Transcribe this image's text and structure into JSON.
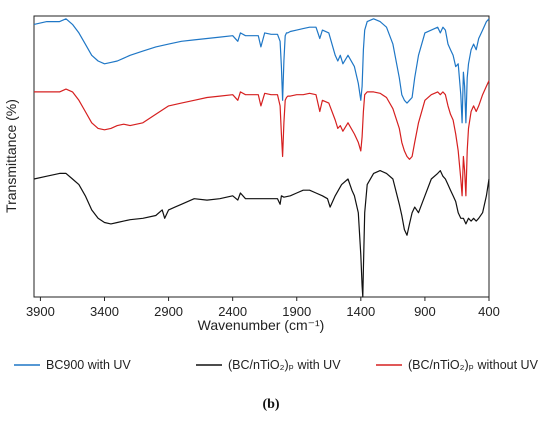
{
  "chart_data": {
    "type": "line",
    "title": "",
    "xlabel": "Wavenumber (cm⁻¹)",
    "ylabel": "Transmittance (%)",
    "xlim": [
      3950,
      400
    ],
    "x_reversed": true,
    "y_ticks_shown": false,
    "grid": false,
    "xticks": [
      3900,
      3400,
      2900,
      2400,
      1900,
      1400,
      900,
      400
    ],
    "legend_position": "bottom",
    "legend": [
      {
        "label": "BC900 with UV",
        "color": "#1f77c6"
      },
      {
        "label": "(BC/nTiO₂)ₚ with UV",
        "color": "#111111"
      },
      {
        "label": "(BC/nTiO₂)ₚ without UV",
        "color": "#d62020"
      }
    ],
    "panel_label": "(b)",
    "series": [
      {
        "color": "#1f77c6",
        "x": [
          3950,
          3850,
          3750,
          3700,
          3650,
          3600,
          3550,
          3500,
          3450,
          3400,
          3350,
          3300,
          3250,
          3200,
          3100,
          3000,
          2900,
          2800,
          2700,
          2600,
          2500,
          2400,
          2360,
          2340,
          2300,
          2200,
          2180,
          2150,
          2100,
          2050,
          2030,
          2020,
          2010,
          2000,
          1990,
          1980,
          1970,
          1950,
          1900,
          1850,
          1800,
          1750,
          1720,
          1700,
          1650,
          1600,
          1580,
          1560,
          1540,
          1500,
          1450,
          1420,
          1400,
          1390,
          1380,
          1370,
          1350,
          1300,
          1250,
          1200,
          1150,
          1100,
          1080,
          1060,
          1040,
          1020,
          1000,
          980,
          950,
          900,
          850,
          800,
          780,
          760,
          740,
          720,
          700,
          680,
          660,
          640,
          620,
          610,
          600,
          590,
          580,
          570,
          560,
          540,
          520,
          500,
          480,
          450,
          420,
          400
        ],
        "y": [
          97,
          98,
          98,
          99,
          97,
          94,
          90,
          86,
          84,
          83,
          83.5,
          84,
          85,
          86,
          87.5,
          89,
          90,
          91,
          91.5,
          92,
          92.5,
          93,
          91,
          94,
          93,
          93,
          89,
          94,
          93.5,
          93.5,
          91,
          82,
          70,
          84,
          93,
          94,
          94,
          94.5,
          95,
          95.5,
          96,
          96,
          92,
          95,
          94,
          86,
          84,
          86,
          83,
          86,
          82,
          76,
          70,
          75,
          88,
          95,
          98,
          99,
          98,
          96,
          90,
          78,
          72,
          70,
          69,
          70,
          71,
          78,
          86,
          94,
          95,
          96,
          94,
          96,
          95,
          90,
          88,
          86,
          82,
          83,
          72,
          62,
          80,
          75,
          62,
          78,
          83,
          88,
          90,
          88,
          92,
          95,
          98,
          99
        ]
      },
      {
        "color": "#d62020",
        "x": [
          3950,
          3850,
          3750,
          3700,
          3650,
          3600,
          3550,
          3500,
          3450,
          3400,
          3350,
          3300,
          3250,
          3200,
          3100,
          3000,
          2900,
          2800,
          2700,
          2600,
          2500,
          2400,
          2360,
          2340,
          2300,
          2200,
          2180,
          2150,
          2100,
          2050,
          2030,
          2020,
          2010,
          2000,
          1990,
          1980,
          1970,
          1950,
          1900,
          1850,
          1800,
          1750,
          1720,
          1700,
          1650,
          1600,
          1580,
          1560,
          1540,
          1500,
          1450,
          1420,
          1400,
          1390,
          1380,
          1370,
          1350,
          1300,
          1250,
          1200,
          1150,
          1100,
          1080,
          1060,
          1040,
          1020,
          1000,
          980,
          950,
          900,
          850,
          800,
          780,
          760,
          740,
          720,
          700,
          680,
          660,
          640,
          620,
          610,
          600,
          590,
          580,
          570,
          560,
          540,
          520,
          500,
          480,
          450,
          420,
          400
        ],
        "y": [
          73,
          73,
          73,
          74,
          73,
          70,
          66,
          62,
          60,
          59.5,
          60,
          61,
          61.5,
          61,
          62,
          65,
          68,
          69,
          70,
          71,
          71.5,
          72,
          70,
          73,
          72,
          72,
          68,
          72.5,
          72,
          72,
          68,
          58,
          50,
          62,
          70,
          71,
          71.5,
          71.5,
          72,
          72,
          72.5,
          72,
          66,
          70,
          69,
          63,
          60,
          61,
          59,
          62,
          58,
          55,
          52,
          57,
          66,
          72,
          73,
          73,
          72.5,
          71,
          67,
          60,
          55,
          52,
          50,
          49,
          50,
          55,
          62,
          70,
          72,
          73,
          72,
          73,
          72,
          68,
          65,
          63,
          58,
          52,
          42,
          36,
          50,
          45,
          36,
          52,
          60,
          66,
          68,
          66,
          68,
          72,
          75,
          77
        ]
      },
      {
        "color": "#111111",
        "x": [
          3950,
          3850,
          3750,
          3700,
          3650,
          3600,
          3550,
          3500,
          3450,
          3400,
          3350,
          3300,
          3250,
          3200,
          3100,
          3000,
          2950,
          2930,
          2900,
          2850,
          2800,
          2700,
          2600,
          2500,
          2400,
          2360,
          2340,
          2300,
          2200,
          2100,
          2050,
          2030,
          2020,
          2000,
          1950,
          1900,
          1850,
          1800,
          1750,
          1700,
          1660,
          1640,
          1600,
          1550,
          1500,
          1470,
          1450,
          1420,
          1400,
          1390,
          1385,
          1380,
          1370,
          1350,
          1300,
          1250,
          1200,
          1150,
          1100,
          1080,
          1060,
          1040,
          1020,
          1000,
          980,
          950,
          900,
          850,
          800,
          780,
          760,
          740,
          720,
          700,
          680,
          660,
          640,
          620,
          600,
          580,
          560,
          540,
          520,
          500,
          480,
          450,
          420,
          400
        ],
        "y": [
          42,
          43,
          44,
          44,
          42,
          40,
          36,
          31,
          28,
          26.5,
          26,
          26.5,
          27,
          27.5,
          28,
          29,
          31,
          28,
          31,
          32,
          33,
          35,
          34.5,
          35,
          36,
          34.5,
          37,
          35,
          35,
          35,
          35,
          33,
          36,
          35.5,
          36,
          37,
          38,
          38,
          37,
          36,
          35,
          32,
          36,
          40,
          42,
          38,
          36,
          30,
          15,
          4,
          0,
          10,
          30,
          40,
          44,
          45,
          44,
          42,
          33,
          29,
          24,
          22,
          26,
          30,
          32,
          30,
          36,
          42,
          44,
          45,
          43,
          42,
          40,
          38,
          36,
          34,
          30,
          28,
          28,
          26,
          28,
          27,
          28,
          27,
          28,
          30,
          36,
          42
        ]
      }
    ]
  }
}
